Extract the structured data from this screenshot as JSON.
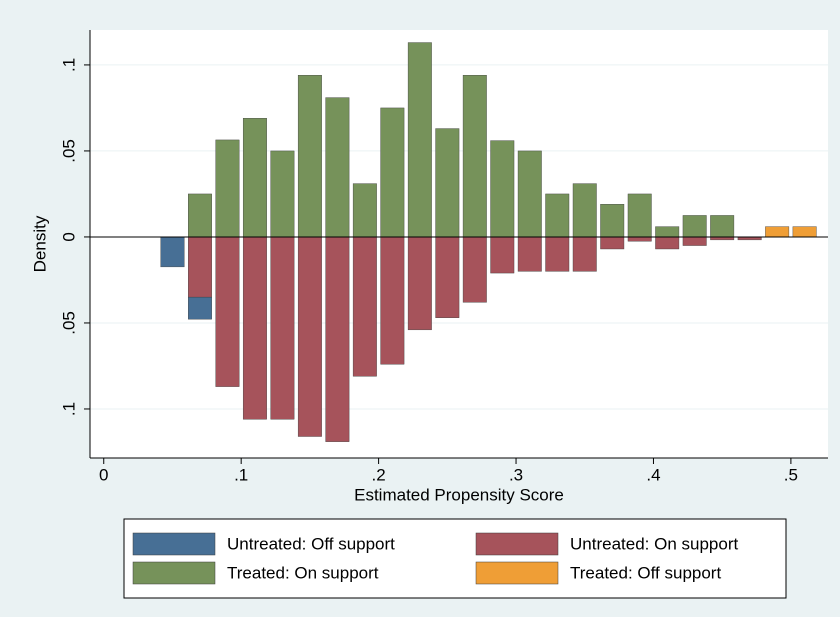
{
  "chart_data": {
    "type": "histogram",
    "x_label": "Estimated Propensity Score",
    "y_label": "Density",
    "bins": [
      0.04,
      0.06,
      0.08,
      0.1,
      0.12,
      0.14,
      0.16,
      0.18,
      0.2,
      0.22,
      0.24,
      0.26,
      0.28,
      0.3,
      0.32,
      0.34,
      0.36,
      0.38,
      0.4,
      0.42,
      0.44,
      0.46,
      0.48,
      0.5,
      0.52
    ],
    "series": [
      {
        "name": "Untreated: Off support",
        "color": "#476f95",
        "values": [
          -0.0174,
          -0.0128,
          null,
          null,
          null,
          null,
          null,
          null,
          null,
          null,
          null,
          null,
          null,
          null,
          null,
          null,
          null,
          null,
          null,
          null,
          null,
          null,
          null,
          null
        ]
      },
      {
        "name": "Untreated: On support",
        "color": "#a6535b",
        "values": [
          null,
          -0.035,
          -0.087,
          -0.106,
          -0.106,
          -0.116,
          -0.119,
          -0.081,
          -0.074,
          -0.054,
          -0.047,
          -0.038,
          -0.021,
          -0.02,
          -0.02,
          -0.02,
          -0.007,
          -0.0025,
          -0.007,
          -0.005,
          -0.0017,
          -0.0017,
          null,
          null
        ]
      },
      {
        "name": "Treated: On support",
        "color": "#76925a",
        "values": [
          null,
          0.025,
          0.0564,
          0.069,
          0.05,
          0.094,
          0.081,
          0.031,
          0.075,
          0.113,
          0.063,
          0.094,
          0.056,
          0.05,
          0.025,
          0.031,
          0.019,
          0.025,
          0.006,
          0.0125,
          0.0125,
          null,
          null,
          null
        ]
      },
      {
        "name": "Treated: Off support",
        "color": "#ef9e36",
        "values": [
          null,
          null,
          null,
          null,
          null,
          null,
          null,
          null,
          null,
          null,
          null,
          null,
          null,
          null,
          null,
          null,
          null,
          null,
          null,
          null,
          null,
          null,
          0.006,
          0.006
        ]
      }
    ],
    "xlim": [
      -0.01,
      0.527
    ],
    "ylim": [
      -0.1285,
      0.1203
    ],
    "xticks": [
      0,
      {
        "value": 0.1,
        "label": ".1"
      },
      {
        "value": 0.2,
        "label": ".2"
      },
      {
        "value": 0.3,
        "label": ".3"
      },
      {
        "value": 0.4,
        "label": ".4"
      },
      {
        "value": 0.5,
        "label": ".5"
      }
    ],
    "yticks": [
      {
        "value": -0.1,
        "label": ".1"
      },
      {
        "value": -0.05,
        "label": ".05"
      },
      0,
      {
        "value": 0.05,
        "label": ".05"
      },
      {
        "value": 0.1,
        "label": ".1"
      }
    ],
    "grid": true
  }
}
